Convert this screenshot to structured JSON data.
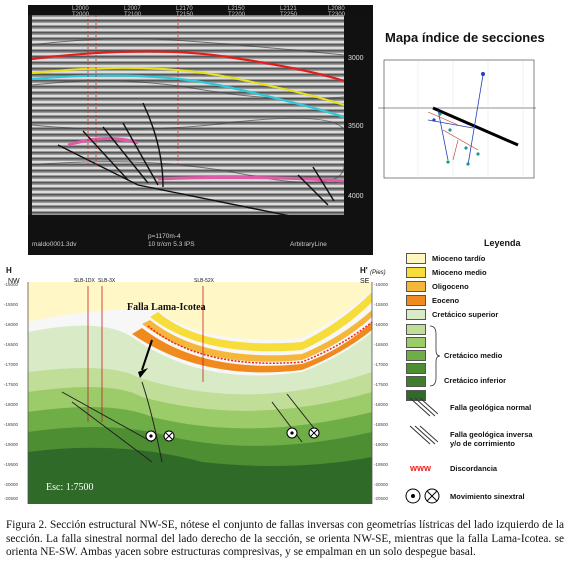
{
  "seismic": {
    "trace_labels": [
      "L2000\nT2000",
      "L2007\nT2100",
      "L2170\nT2150",
      "L2150\nT2200",
      "L2121\nT2250",
      "L2080\nT2300"
    ],
    "time_labels": [
      "3000",
      "3500",
      "4000"
    ],
    "footer_left": "maldo0001.3dv",
    "footer_center": "p=1170m-4\n10 tr/cm 5.3 IPS",
    "footer_right": "ArbitraryLine"
  },
  "map": {
    "title": "Mapa índice de secciones"
  },
  "section": {
    "left_corner": "H",
    "right_corner": "H'",
    "unit": "(Pies)",
    "nw": "NW",
    "se": "SE",
    "wells": [
      "SLB-1DX",
      "SLB-3X",
      "SLB-52X"
    ],
    "fault_label": "Falla Lama-Icotea",
    "scale": "Esc: 1:7500",
    "depth_labels": [
      "-15000",
      "-15500",
      "-16000",
      "-16500",
      "-17000",
      "-17500",
      "-18000",
      "-18500",
      "-19000",
      "-19500",
      "-20000",
      "-20500"
    ]
  },
  "legend": {
    "title": "Leyenda",
    "items": [
      {
        "label": "Mioceno tardío",
        "color": "#fff6c0"
      },
      {
        "label": "Mioceno medio",
        "color": "#f7dd3a"
      },
      {
        "label": "Oligoceno",
        "color": "#f4b73a"
      },
      {
        "label": "Eoceno",
        "color": "#f08a1c"
      },
      {
        "label": "Cretácico superior",
        "color": "#d8eac6"
      }
    ],
    "medio_colors": [
      "#c0de98",
      "#9ccb6a",
      "#6fae47",
      "#4d8e32",
      "#3f7f2c"
    ],
    "medio_label": "Cretácico medio",
    "inferior": {
      "label": "Cretácico inferior",
      "color": "#2f6a28"
    },
    "falla_normal": "Falla geológica normal",
    "falla_inversa": "Falla geológica inversa\ny/o de corrimiento",
    "discordancia_symbol": "www",
    "discordancia": "Discordancia",
    "movimiento": "Movimiento sinextral"
  },
  "caption": "Figura 2. Sección estructural NW-SE, nótese el conjunto de fallas inversas con geometrías lístricas del lado izquierdo de la sección. La falla sinestral normal del lado derecho de la sección, se orienta NW-SE, mientras que la falla Lama-Icotea. se orienta NE-SW. Ambas yacen sobre estructuras compresivas, y se empalman en un solo despegue basal."
}
